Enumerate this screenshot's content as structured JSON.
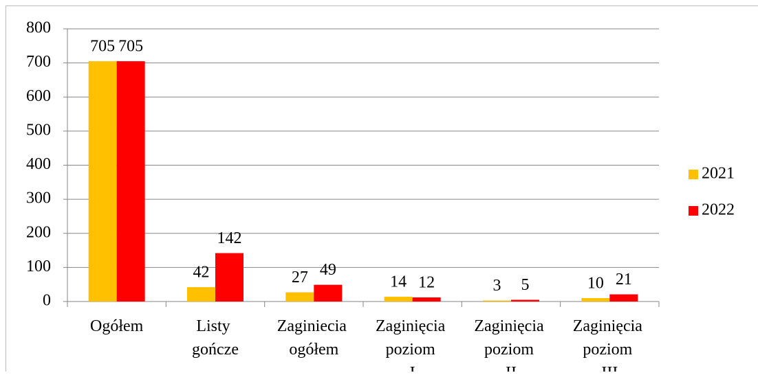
{
  "chart_data": {
    "type": "bar",
    "categories": [
      "Ogółem",
      "Listy gończe",
      "Zaginiecia ogółem",
      "Zaginięcia poziom I",
      "Zaginięcia poziom II",
      "Zaginięcia poziom III"
    ],
    "series": [
      {
        "name": "2021",
        "color": "#ffc000",
        "values": [
          705,
          42,
          27,
          14,
          3,
          10
        ]
      },
      {
        "name": "2022",
        "color": "#ff0000",
        "values": [
          705,
          142,
          49,
          12,
          5,
          21
        ]
      }
    ],
    "ylim": [
      0,
      800
    ],
    "yticks": [
      0,
      100,
      200,
      300,
      400,
      500,
      600,
      700,
      800
    ],
    "grid": true,
    "legend": "right"
  }
}
